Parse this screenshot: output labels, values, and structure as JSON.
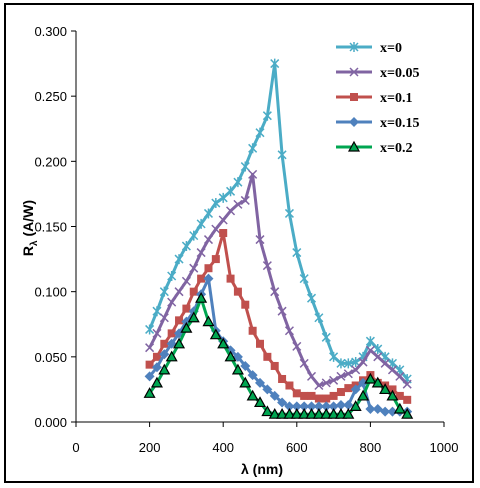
{
  "chart_data": {
    "type": "line",
    "xlabel": "λ (nm)",
    "ylabel_main": "R",
    "ylabel_sub": "λ",
    "ylabel_rest": " (A/W)",
    "xlim": [
      0,
      1000
    ],
    "ylim": [
      0,
      0.3
    ],
    "xticks": [
      0,
      200,
      400,
      600,
      800,
      1000
    ],
    "xtick_labels": [
      "0",
      "200",
      "400",
      "600",
      "800",
      "1000"
    ],
    "yticks": [
      0,
      0.05,
      0.1,
      0.15,
      0.2,
      0.25,
      0.3
    ],
    "ytick_labels": [
      "0.000",
      "0.050",
      "0.100",
      "0.150",
      "0.200",
      "0.250",
      "0.300"
    ],
    "grid": false,
    "legend_position": "top-right",
    "series": [
      {
        "name": "x=0",
        "color": "#4BACC6",
        "marker": "asterisk",
        "points": [
          [
            200,
            0.071
          ],
          [
            220,
            0.085
          ],
          [
            240,
            0.1
          ],
          [
            260,
            0.112
          ],
          [
            280,
            0.125
          ],
          [
            300,
            0.135
          ],
          [
            320,
            0.143
          ],
          [
            340,
            0.152
          ],
          [
            360,
            0.16
          ],
          [
            380,
            0.168
          ],
          [
            400,
            0.172
          ],
          [
            420,
            0.177
          ],
          [
            440,
            0.184
          ],
          [
            460,
            0.196
          ],
          [
            480,
            0.21
          ],
          [
            500,
            0.222
          ],
          [
            520,
            0.235
          ],
          [
            540,
            0.275
          ],
          [
            560,
            0.205
          ],
          [
            580,
            0.16
          ],
          [
            600,
            0.13
          ],
          [
            620,
            0.11
          ],
          [
            640,
            0.095
          ],
          [
            660,
            0.08
          ],
          [
            680,
            0.065
          ],
          [
            700,
            0.05
          ],
          [
            720,
            0.045
          ],
          [
            740,
            0.045
          ],
          [
            760,
            0.046
          ],
          [
            780,
            0.05
          ],
          [
            800,
            0.062
          ],
          [
            820,
            0.056
          ],
          [
            840,
            0.05
          ],
          [
            860,
            0.045
          ],
          [
            880,
            0.04
          ],
          [
            900,
            0.033
          ]
        ]
      },
      {
        "name": "x=0.05",
        "color": "#8064A2",
        "marker": "x",
        "points": [
          [
            200,
            0.057
          ],
          [
            220,
            0.068
          ],
          [
            240,
            0.08
          ],
          [
            260,
            0.092
          ],
          [
            280,
            0.1
          ],
          [
            300,
            0.108
          ],
          [
            320,
            0.118
          ],
          [
            340,
            0.13
          ],
          [
            360,
            0.14
          ],
          [
            380,
            0.148
          ],
          [
            400,
            0.155
          ],
          [
            420,
            0.162
          ],
          [
            440,
            0.167
          ],
          [
            460,
            0.17
          ],
          [
            480,
            0.19
          ],
          [
            500,
            0.14
          ],
          [
            520,
            0.12
          ],
          [
            540,
            0.1
          ],
          [
            560,
            0.085
          ],
          [
            580,
            0.07
          ],
          [
            600,
            0.058
          ],
          [
            620,
            0.045
          ],
          [
            640,
            0.035
          ],
          [
            660,
            0.028
          ],
          [
            680,
            0.03
          ],
          [
            700,
            0.032
          ],
          [
            720,
            0.035
          ],
          [
            740,
            0.037
          ],
          [
            760,
            0.04
          ],
          [
            780,
            0.046
          ],
          [
            800,
            0.055
          ],
          [
            820,
            0.05
          ],
          [
            840,
            0.045
          ],
          [
            860,
            0.04
          ],
          [
            880,
            0.035
          ],
          [
            900,
            0.029
          ]
        ]
      },
      {
        "name": "x=0.1",
        "color": "#C0504D",
        "marker": "square",
        "points": [
          [
            200,
            0.044
          ],
          [
            220,
            0.05
          ],
          [
            240,
            0.06
          ],
          [
            260,
            0.068
          ],
          [
            280,
            0.078
          ],
          [
            300,
            0.087
          ],
          [
            320,
            0.1
          ],
          [
            340,
            0.11
          ],
          [
            360,
            0.118
          ],
          [
            380,
            0.125
          ],
          [
            400,
            0.145
          ],
          [
            420,
            0.11
          ],
          [
            440,
            0.1
          ],
          [
            460,
            0.09
          ],
          [
            480,
            0.07
          ],
          [
            500,
            0.06
          ],
          [
            520,
            0.05
          ],
          [
            540,
            0.043
          ],
          [
            560,
            0.033
          ],
          [
            580,
            0.028
          ],
          [
            600,
            0.022
          ],
          [
            620,
            0.02
          ],
          [
            640,
            0.02
          ],
          [
            660,
            0.018
          ],
          [
            680,
            0.018
          ],
          [
            700,
            0.02
          ],
          [
            720,
            0.023
          ],
          [
            740,
            0.026
          ],
          [
            760,
            0.028
          ],
          [
            780,
            0.032
          ],
          [
            800,
            0.036
          ],
          [
            820,
            0.03
          ],
          [
            840,
            0.028
          ],
          [
            860,
            0.025
          ],
          [
            880,
            0.02
          ],
          [
            900,
            0.017
          ]
        ]
      },
      {
        "name": "x=0.15",
        "color": "#4F81BD",
        "marker": "diamond",
        "points": [
          [
            200,
            0.035
          ],
          [
            220,
            0.042
          ],
          [
            240,
            0.052
          ],
          [
            260,
            0.06
          ],
          [
            280,
            0.068
          ],
          [
            300,
            0.077
          ],
          [
            320,
            0.085
          ],
          [
            340,
            0.098
          ],
          [
            360,
            0.11
          ],
          [
            380,
            0.07
          ],
          [
            400,
            0.062
          ],
          [
            420,
            0.055
          ],
          [
            440,
            0.05
          ],
          [
            460,
            0.043
          ],
          [
            480,
            0.036
          ],
          [
            500,
            0.03
          ],
          [
            520,
            0.025
          ],
          [
            540,
            0.02
          ],
          [
            560,
            0.015
          ],
          [
            580,
            0.012
          ],
          [
            600,
            0.012
          ],
          [
            620,
            0.012
          ],
          [
            640,
            0.012
          ],
          [
            660,
            0.012
          ],
          [
            680,
            0.012
          ],
          [
            700,
            0.012
          ],
          [
            720,
            0.013
          ],
          [
            740,
            0.013
          ],
          [
            760,
            0.025
          ],
          [
            780,
            0.03
          ],
          [
            800,
            0.01
          ],
          [
            820,
            0.01
          ],
          [
            840,
            0.008
          ],
          [
            860,
            0.008
          ],
          [
            880,
            0.008
          ],
          [
            900,
            0.008
          ]
        ]
      },
      {
        "name": "x=0.2",
        "color": "#00A651",
        "marker": "triangle",
        "points": [
          [
            200,
            0.022
          ],
          [
            220,
            0.03
          ],
          [
            240,
            0.04
          ],
          [
            260,
            0.05
          ],
          [
            280,
            0.06
          ],
          [
            300,
            0.072
          ],
          [
            320,
            0.08
          ],
          [
            340,
            0.095
          ],
          [
            360,
            0.077
          ],
          [
            380,
            0.067
          ],
          [
            400,
            0.06
          ],
          [
            420,
            0.05
          ],
          [
            440,
            0.04
          ],
          [
            460,
            0.03
          ],
          [
            480,
            0.02
          ],
          [
            500,
            0.015
          ],
          [
            520,
            0.008
          ],
          [
            540,
            0.006
          ],
          [
            560,
            0.006
          ],
          [
            580,
            0.006
          ],
          [
            600,
            0.006
          ],
          [
            620,
            0.006
          ],
          [
            640,
            0.006
          ],
          [
            660,
            0.006
          ],
          [
            680,
            0.006
          ],
          [
            700,
            0.006
          ],
          [
            720,
            0.006
          ],
          [
            740,
            0.006
          ],
          [
            760,
            0.012
          ],
          [
            780,
            0.02
          ],
          [
            800,
            0.033
          ],
          [
            820,
            0.03
          ],
          [
            840,
            0.025
          ],
          [
            860,
            0.02
          ],
          [
            880,
            0.01
          ],
          [
            900,
            0.006
          ]
        ]
      }
    ]
  }
}
